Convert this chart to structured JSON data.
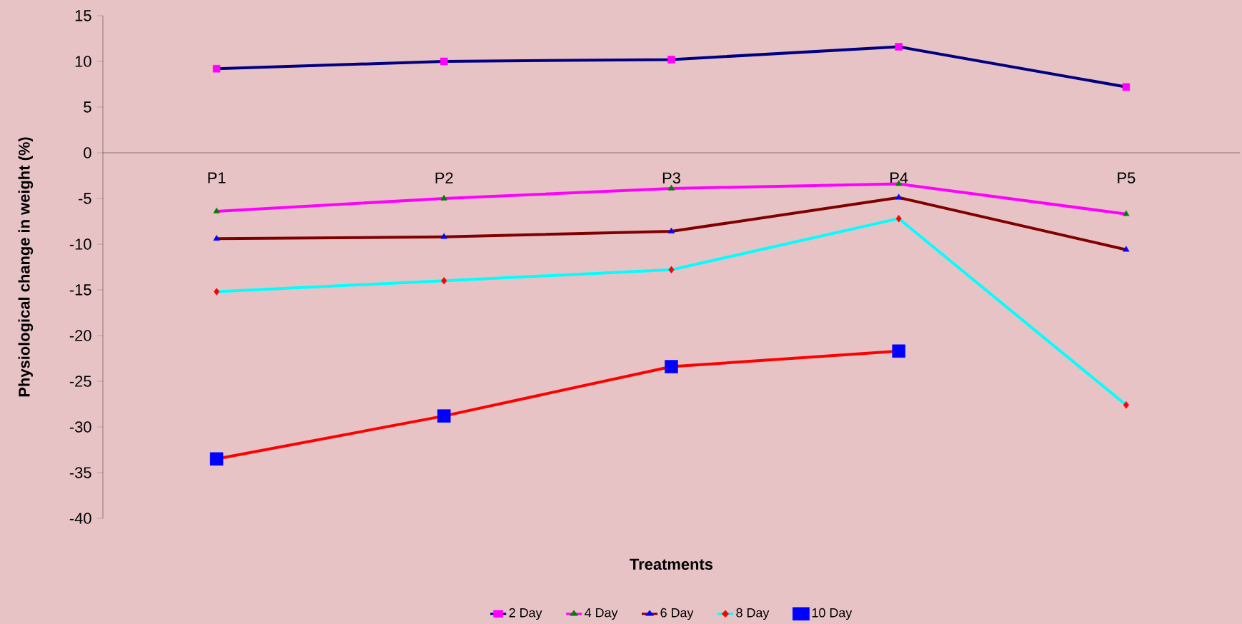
{
  "chart_data": {
    "type": "line",
    "xlabel": "Treatments",
    "ylabel": "Physiological change in weight (%)",
    "categories": [
      "P1",
      "P2",
      "P3",
      "P4",
      "P5"
    ],
    "series": [
      {
        "name": "2 Day",
        "color": "#000080",
        "marker": "square",
        "values": [
          9.2,
          10.0,
          10.2,
          11.6,
          7.2
        ]
      },
      {
        "name": "4 Day",
        "color": "#ff00ff",
        "marker": "triangle",
        "values": [
          -6.4,
          -5.0,
          -3.9,
          -3.4,
          -6.7
        ]
      },
      {
        "name": "6 Day",
        "color": "#800000",
        "marker": "triangle",
        "values": [
          -9.4,
          -9.2,
          -8.6,
          -4.9,
          -10.6
        ]
      },
      {
        "name": "8 Day",
        "color": "#00ffff",
        "marker": "diamond",
        "values": [
          -15.2,
          -14.0,
          -12.8,
          -7.2,
          -27.6
        ]
      },
      {
        "name": "10 Day",
        "color": "#ff0000",
        "marker": "square",
        "values": [
          -33.5,
          -28.8,
          -23.4,
          -21.7,
          null
        ]
      }
    ],
    "ylim": [
      -40,
      15
    ],
    "yticks": [
      -40,
      -35,
      -30,
      -25,
      -20,
      -15,
      -10,
      -5,
      0,
      5,
      10,
      15
    ],
    "grid": false,
    "legend": "bottom",
    "line_style": "solid"
  }
}
